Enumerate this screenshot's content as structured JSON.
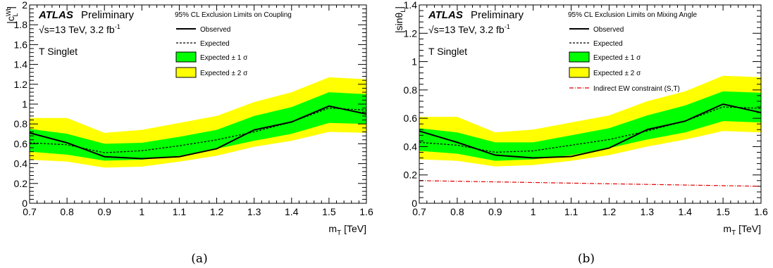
{
  "chart_data": [
    {
      "type": "line",
      "panel_caption": "(a)",
      "experiment": "ATLAS",
      "status": "Preliminary",
      "energy_label": "√s=13 TeV,  3.2 fb",
      "energy_sup": "-1",
      "model_label": "T Singlet",
      "legend_title": "95% CL Exclusion Limits on Coupling",
      "xlabel_main": "m",
      "xlabel_sub": "T",
      "xlabel_unit": " [TeV]",
      "ylabel_pre": "|c",
      "ylabel_sup": "Wb",
      "ylabel_sub": "L",
      "ylabel_post": "|",
      "xlim": [
        0.7,
        1.6
      ],
      "ylim": [
        0,
        2
      ],
      "xticks": [
        0.7,
        0.8,
        0.9,
        1,
        1.1,
        1.2,
        1.3,
        1.4,
        1.5,
        1.6
      ],
      "yticks": [
        0,
        0.2,
        0.4,
        0.6,
        0.8,
        1,
        1.2,
        1.4,
        1.6,
        1.8,
        2
      ],
      "x": [
        0.7,
        0.8,
        0.9,
        1.0,
        1.1,
        1.2,
        1.3,
        1.4,
        1.5,
        1.6
      ],
      "observed": [
        0.71,
        0.61,
        0.47,
        0.45,
        0.47,
        0.55,
        0.74,
        0.82,
        0.98,
        0.9
      ],
      "expected": [
        0.61,
        0.59,
        0.51,
        0.53,
        0.58,
        0.64,
        0.72,
        0.82,
        0.96,
        0.94
      ],
      "band1_low": [
        0.52,
        0.49,
        0.43,
        0.44,
        0.48,
        0.55,
        0.63,
        0.7,
        0.81,
        0.8
      ],
      "band1_high": [
        0.75,
        0.7,
        0.6,
        0.61,
        0.67,
        0.74,
        0.88,
        0.97,
        1.12,
        1.1
      ],
      "band2_low": [
        0.44,
        0.42,
        0.36,
        0.37,
        0.42,
        0.48,
        0.57,
        0.63,
        0.72,
        0.71
      ],
      "band2_high": [
        0.86,
        0.86,
        0.71,
        0.74,
        0.81,
        0.88,
        1.02,
        1.12,
        1.27,
        1.25
      ],
      "legend": {
        "observed": "Observed",
        "expected": "Expected",
        "band1": "Expected ± 1 σ",
        "band2": "Expected ± 2 σ"
      },
      "colors": {
        "band1": "#00ff00",
        "band2": "#ffff00",
        "observed": "#000000",
        "expected": "#000000"
      }
    },
    {
      "type": "line",
      "panel_caption": "(b)",
      "experiment": "ATLAS",
      "status": "Preliminary",
      "energy_label": "√s=13 TeV,  3.2 fb",
      "energy_sup": "-1",
      "model_label": "T Singlet",
      "legend_title": "95% CL Exclusion Limits on Mixing Angle",
      "xlabel_main": "m",
      "xlabel_sub": "T",
      "xlabel_unit": " [TeV]",
      "ylabel_pre": "|sinθ",
      "ylabel_sub": "L",
      "ylabel_post": "|",
      "xlim": [
        0.7,
        1.6
      ],
      "ylim": [
        0,
        1.4
      ],
      "xticks": [
        0.7,
        0.8,
        0.9,
        1,
        1.1,
        1.2,
        1.3,
        1.4,
        1.5,
        1.6
      ],
      "yticks": [
        0,
        0.2,
        0.4,
        0.6,
        0.8,
        1,
        1.2,
        1.4
      ],
      "x": [
        0.7,
        0.8,
        0.9,
        1.0,
        1.1,
        1.2,
        1.3,
        1.4,
        1.5,
        1.6
      ],
      "observed": [
        0.51,
        0.43,
        0.34,
        0.32,
        0.33,
        0.39,
        0.52,
        0.58,
        0.7,
        0.64
      ],
      "expected": [
        0.43,
        0.41,
        0.36,
        0.37,
        0.41,
        0.45,
        0.51,
        0.58,
        0.68,
        0.67
      ],
      "band1_low": [
        0.37,
        0.35,
        0.3,
        0.31,
        0.34,
        0.39,
        0.45,
        0.5,
        0.58,
        0.57
      ],
      "band1_high": [
        0.53,
        0.5,
        0.43,
        0.43,
        0.48,
        0.53,
        0.62,
        0.69,
        0.79,
        0.78
      ],
      "band2_low": [
        0.31,
        0.3,
        0.26,
        0.27,
        0.3,
        0.34,
        0.4,
        0.45,
        0.51,
        0.5
      ],
      "band2_high": [
        0.61,
        0.61,
        0.5,
        0.52,
        0.57,
        0.62,
        0.72,
        0.79,
        0.9,
        0.89
      ],
      "ew_x": [
        0.7,
        1.6
      ],
      "ew_y": [
        0.16,
        0.12
      ],
      "legend": {
        "observed": "Observed",
        "expected": "Expected",
        "band1": "Expected ± 1 σ",
        "band2": "Expected ± 2 σ",
        "ew": "Indirect EW constraint (S,T)"
      },
      "colors": {
        "band1": "#00ff00",
        "band2": "#ffff00",
        "observed": "#000000",
        "expected": "#000000",
        "ew": "#e00000"
      }
    }
  ]
}
